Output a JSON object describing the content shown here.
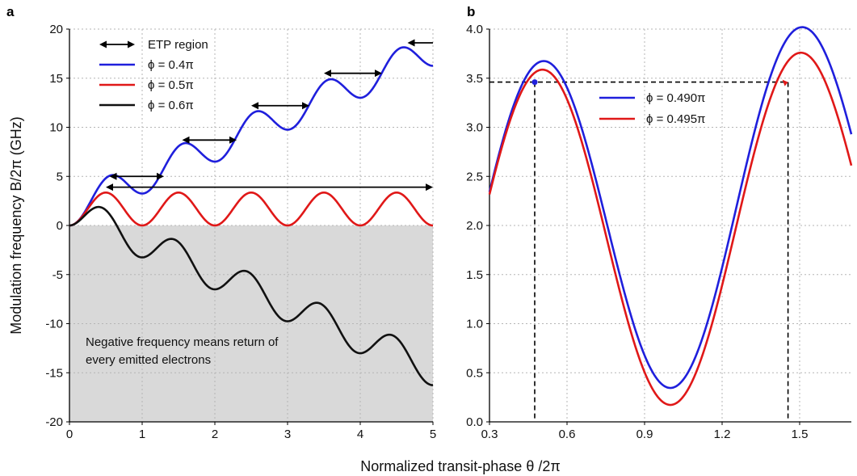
{
  "figure": {
    "shared_xlabel": "Normalized transit-phase θ /2π"
  },
  "chart_data": [
    {
      "panel": "a",
      "type": "line",
      "ylabel": "Modulation frequency B/2π (GHz)",
      "xlim": [
        0,
        5
      ],
      "ylim": [
        -20,
        20
      ],
      "x_ticks": [
        0,
        1,
        2,
        3,
        4,
        5
      ],
      "y_ticks": [
        -20,
        -15,
        -10,
        -5,
        0,
        5,
        10,
        15,
        20
      ],
      "grid": true,
      "legend_position": "top-left",
      "shaded_region": {
        "from": -20,
        "to": 0,
        "color": "#d9d9d9"
      },
      "series": [
        {
          "name": "ϕ = 0.4π",
          "color": "#1f1fdc",
          "phi": 0.4
        },
        {
          "name": "ϕ = 0.5π",
          "color": "#e01818",
          "phi": 0.5
        },
        {
          "name": "ϕ = 0.6π",
          "color": "#111111",
          "phi": 0.6
        }
      ],
      "legend_extra": {
        "label": "ETP region"
      },
      "etp_arrows": [
        {
          "x1": 0.55,
          "x2": 1.3,
          "y": 5.0
        },
        {
          "x1": 1.55,
          "x2": 2.3,
          "y": 8.7
        },
        {
          "x1": 2.5,
          "x2": 3.3,
          "y": 12.2
        },
        {
          "x1": 3.5,
          "x2": 4.3,
          "y": 15.5
        },
        {
          "x1": 4.65,
          "x2": 5.0,
          "y": 18.6
        },
        {
          "x1": 0.5,
          "x2": 5.0,
          "y": 3.9
        }
      ],
      "annotation_lines": [
        "Negative frequency means return of",
        "every emitted electrons"
      ]
    },
    {
      "panel": "b",
      "type": "line",
      "xlim": [
        0.3,
        1.7
      ],
      "ylim": [
        0.0,
        4.0
      ],
      "x_ticks": [
        0.3,
        0.6,
        0.9,
        1.2,
        1.5
      ],
      "x_tick_labels": [
        "0.3",
        "0.6",
        "0.9",
        "1.2",
        "1.5"
      ],
      "y_ticks": [
        0.0,
        0.5,
        1.0,
        1.5,
        2.0,
        2.5,
        3.0,
        3.5,
        4.0
      ],
      "y_tick_labels": [
        "0.0",
        "0.5",
        "1.0",
        "1.5",
        "2.0",
        "2.5",
        "3.0",
        "3.5",
        "4.0"
      ],
      "grid": true,
      "legend_position": "top-center",
      "series": [
        {
          "name": "ϕ = 0.490π",
          "color": "#1f1fdc",
          "phi": 0.49
        },
        {
          "name": "ϕ = 0.495π",
          "color": "#e01818",
          "phi": 0.495
        }
      ],
      "reference_lines": {
        "y": 3.46,
        "x_left": 0.475,
        "x_right": 1.455
      }
    }
  ]
}
